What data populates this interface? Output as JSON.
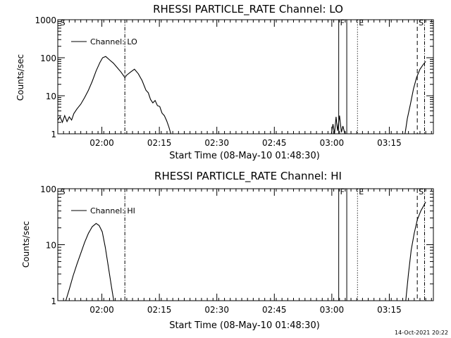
{
  "footer_timestamp": "14-Oct-2021 20:22",
  "chart_data": [
    {
      "type": "line",
      "title": "RHESSI PARTICLE_RATE Channel: LO",
      "xlabel": "Start Time (08-May-10 01:48:30)",
      "ylabel": "Counts/sec",
      "yscale": "log",
      "ylim": [
        1,
        1000
      ],
      "xlim": [
        0,
        98
      ],
      "y_ticks": [
        {
          "value": 1,
          "label": "1"
        },
        {
          "value": 10,
          "label": "10"
        },
        {
          "value": 100,
          "label": "100"
        },
        {
          "value": 1000,
          "label": "1000"
        }
      ],
      "x_ticks": [
        {
          "value": 11.5,
          "label": "02:00"
        },
        {
          "value": 26.5,
          "label": "02:15"
        },
        {
          "value": 41.5,
          "label": "02:30"
        },
        {
          "value": 56.5,
          "label": "02:45"
        },
        {
          "value": 71.5,
          "label": "03:00"
        },
        {
          "value": 86.5,
          "label": "03:15"
        }
      ],
      "legend": {
        "label": "Channel: LO",
        "position": "top-left"
      },
      "markers": [
        {
          "t": 0.3,
          "label": "S",
          "style": "none"
        },
        {
          "t": 17.5,
          "label": "",
          "style": "dashdot"
        },
        {
          "t": 73.3,
          "label": "F",
          "style": "solid"
        },
        {
          "t": 75.4,
          "label": "",
          "style": "solid"
        },
        {
          "t": 78.2,
          "label": "E",
          "style": "dotted"
        },
        {
          "t": 93.8,
          "label": "S",
          "style": "dashed"
        },
        {
          "t": 95.7,
          "label": "",
          "style": "dashdot"
        }
      ],
      "series": [
        {
          "name": "Channel: LO",
          "segments": [
            [
              [
                0,
                2.3
              ],
              [
                0.6,
                2.8
              ],
              [
                1.2,
                2.0
              ],
              [
                1.8,
                3.0
              ],
              [
                2.4,
                2.1
              ],
              [
                3.0,
                2.8
              ],
              [
                3.6,
                2.3
              ],
              [
                4.2,
                3.4
              ],
              [
                5,
                4.5
              ],
              [
                6,
                6
              ],
              [
                7,
                9
              ],
              [
                8,
                14
              ],
              [
                9,
                24
              ],
              [
                10,
                45
              ],
              [
                11,
                75
              ],
              [
                11.7,
                100
              ],
              [
                12.5,
                108
              ],
              [
                13.5,
                88
              ],
              [
                14.5,
                72
              ],
              [
                15.5,
                55
              ],
              [
                16.5,
                42
              ],
              [
                17.5,
                30
              ],
              [
                18,
                35
              ],
              [
                19,
                42
              ],
              [
                20,
                50
              ],
              [
                21,
                38
              ],
              [
                22,
                25
              ],
              [
                23,
                14
              ],
              [
                23.6,
                12
              ],
              [
                24.2,
                8
              ],
              [
                24.8,
                6.5
              ],
              [
                25.4,
                7.5
              ],
              [
                26,
                5.5
              ],
              [
                26.6,
                5.2
              ],
              [
                27.2,
                3.5
              ],
              [
                27.8,
                3.0
              ],
              [
                28.4,
                2.2
              ],
              [
                29,
                1.5
              ],
              [
                29.5,
                1.0
              ]
            ],
            [
              [
                71.4,
                1.0
              ],
              [
                71.8,
                1.8
              ],
              [
                72.2,
                1.0
              ],
              [
                72.6,
                2.8
              ],
              [
                73.0,
                1.2
              ],
              [
                73.5,
                3.0
              ],
              [
                74.0,
                1.1
              ],
              [
                74.4,
                1.6
              ],
              [
                74.9,
                1.0
              ]
            ],
            [
              [
                90.6,
                1.0
              ],
              [
                91.2,
                2.5
              ],
              [
                92,
                6
              ],
              [
                92.8,
                15
              ],
              [
                93.6,
                30
              ],
              [
                94.5,
                50
              ],
              [
                95.3,
                65
              ],
              [
                96,
                80
              ]
            ]
          ]
        }
      ]
    },
    {
      "type": "line",
      "title": "RHESSI PARTICLE_RATE Channel: HI",
      "xlabel": "Start Time (08-May-10 01:48:30)",
      "ylabel": "Counts/sec",
      "yscale": "log",
      "ylim": [
        1,
        100
      ],
      "xlim": [
        0,
        98
      ],
      "y_ticks": [
        {
          "value": 1,
          "label": "1"
        },
        {
          "value": 10,
          "label": "10"
        },
        {
          "value": 100,
          "label": "100"
        }
      ],
      "x_ticks": [
        {
          "value": 11.5,
          "label": "02:00"
        },
        {
          "value": 26.5,
          "label": "02:15"
        },
        {
          "value": 41.5,
          "label": "02:30"
        },
        {
          "value": 56.5,
          "label": "02:45"
        },
        {
          "value": 71.5,
          "label": "03:00"
        },
        {
          "value": 86.5,
          "label": "03:15"
        }
      ],
      "legend": {
        "label": "Channel: HI",
        "position": "top-left"
      },
      "markers": [
        {
          "t": 0.3,
          "label": "S",
          "style": "none"
        },
        {
          "t": 17.5,
          "label": "",
          "style": "dashdot"
        },
        {
          "t": 73.3,
          "label": "F",
          "style": "solid"
        },
        {
          "t": 75.4,
          "label": "",
          "style": "solid"
        },
        {
          "t": 78.2,
          "label": "E",
          "style": "dotted"
        },
        {
          "t": 93.8,
          "label": "S",
          "style": "dashed"
        },
        {
          "t": 95.7,
          "label": "",
          "style": "dashdot"
        }
      ],
      "series": [
        {
          "name": "Channel: HI",
          "segments": [
            [
              [
                2.1,
                1.0
              ],
              [
                3,
                1.6
              ],
              [
                4,
                2.8
              ],
              [
                5,
                4.5
              ],
              [
                6,
                7
              ],
              [
                7,
                11
              ],
              [
                8,
                16
              ],
              [
                9,
                21
              ],
              [
                10,
                24
              ],
              [
                10.8,
                22
              ],
              [
                11.6,
                17
              ],
              [
                12.4,
                9
              ],
              [
                13.2,
                4
              ],
              [
                14,
                1.8
              ],
              [
                14.6,
                1.0
              ]
            ],
            [
              [
                90.8,
                1.0
              ],
              [
                91.5,
                3
              ],
              [
                92.2,
                8
              ],
              [
                93,
                16
              ],
              [
                93.8,
                28
              ],
              [
                94.7,
                40
              ],
              [
                95.5,
                50
              ],
              [
                96,
                58
              ]
            ]
          ]
        }
      ]
    }
  ]
}
